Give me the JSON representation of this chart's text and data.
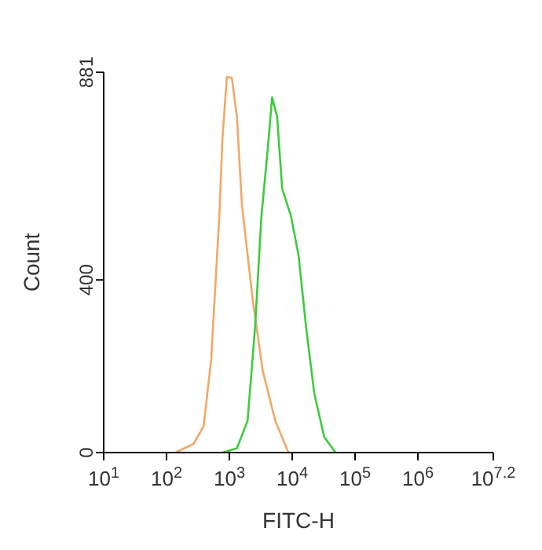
{
  "chart_data": {
    "type": "line",
    "xlabel": "FITC-H",
    "ylabel": "Count",
    "log": "x",
    "marker": "none",
    "line_style": "solid",
    "xlim": [
      10,
      15848932
    ],
    "xticks": [
      {
        "value": 10,
        "label": "10$^{1}$"
      },
      {
        "value": 100,
        "label": "10$^{2}$"
      },
      {
        "value": 1000,
        "label": "10$^{3}$"
      },
      {
        "value": 10000,
        "label": "10$^{4}$"
      },
      {
        "value": 100000,
        "label": "10$^{5}$"
      },
      {
        "value": 1000000,
        "label": "10$^{6}$"
      },
      {
        "value": 15848932,
        "label": "10$^{7.2}$"
      }
    ],
    "ylim": [
      0,
      881
    ],
    "yticks": [
      0,
      400,
      881
    ],
    "series": [
      {
        "color": "#f0a868",
        "x": [
          138,
          269,
          389,
          513,
          692,
          776,
          912,
          1096,
          1318,
          1585,
          2344,
          3388,
          5370,
          8710
        ],
        "values": [
          0,
          20,
          61,
          215,
          548,
          727,
          870,
          868,
          778,
          574,
          356,
          190,
          74,
          0
        ]
      },
      {
        "color": "#3ccc3c",
        "x": [
          776,
          1318,
          1950,
          2570,
          3236,
          4074,
          4786,
          5754,
          6918,
          9550,
          12589,
          16596,
          22387,
          32359,
          48978
        ],
        "values": [
          0,
          10,
          74,
          292,
          548,
          702,
          823,
          778,
          612,
          548,
          458,
          292,
          138,
          36,
          0
        ]
      }
    ]
  }
}
